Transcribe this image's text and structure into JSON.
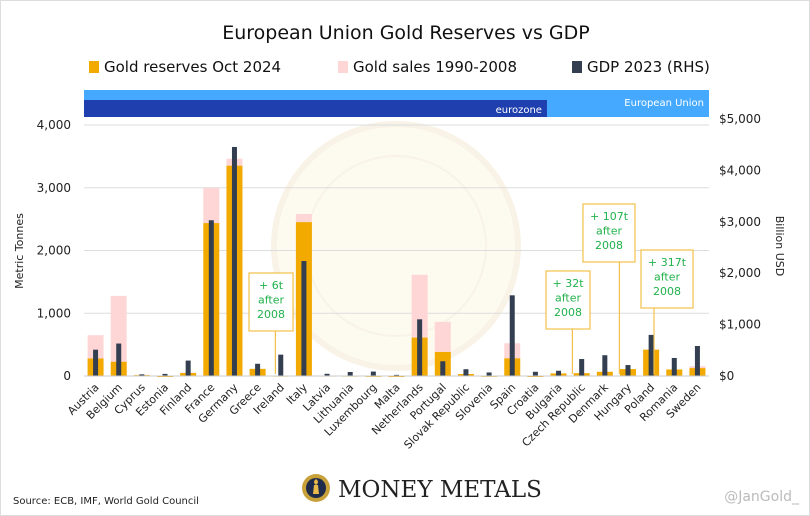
{
  "chart_data": {
    "type": "bar",
    "title": "European Union Gold Reserves vs GDP",
    "ylabel": "Metric Tonnes",
    "y2label": "Billion USD",
    "ylim": [
      0,
      4000
    ],
    "y2lim": [
      0,
      5000
    ],
    "yticks": [
      "0",
      "1,000",
      "2,000",
      "3,000",
      "4,000"
    ],
    "y2ticks": [
      "$0",
      "$1,000",
      "$2,000",
      "$3,000",
      "$4,000",
      "$5,000"
    ],
    "grid": true,
    "legend_position": "top",
    "categories": [
      "Austria",
      "Belgium",
      "Cyprus",
      "Estonia",
      "Finland",
      "France",
      "Germany",
      "Greece",
      "Ireland",
      "Italy",
      "Latvia",
      "Lithuania",
      "Luxembourg",
      "Malta",
      "Netherlands",
      "Portugal",
      "Slovak Republic",
      "Slovenia",
      "Spain",
      "Croatia",
      "Bulgaria",
      "Czech Republic",
      "Denmark",
      "Hungary",
      "Poland",
      "Romania",
      "Sweden"
    ],
    "series": [
      {
        "name": "Gold reserves Oct 2024",
        "axis": "left",
        "stack": "gold",
        "color": "#f2a900",
        "values": [
          280,
          227,
          14,
          0,
          49,
          2437,
          3352,
          114,
          6,
          2452,
          7,
          6,
          2,
          0,
          612,
          383,
          32,
          3,
          282,
          0,
          41,
          45,
          67,
          110,
          420,
          104,
          126
        ]
      },
      {
        "name": "Gold sales 1990-2008",
        "axis": "left",
        "stack": "gold",
        "color": "#ffd6d6",
        "values": [
          370,
          1050,
          5,
          0,
          0,
          560,
          110,
          0,
          0,
          130,
          0,
          0,
          0,
          0,
          1000,
          480,
          0,
          0,
          240,
          0,
          0,
          0,
          0,
          0,
          0,
          0,
          30
        ]
      },
      {
        "name": "GDP 2023 (RHS)",
        "axis": "right",
        "color": "#333f50",
        "values": [
          512,
          632,
          32,
          41,
          300,
          3030,
          4456,
          238,
          415,
          2237,
          43,
          78,
          86,
          22,
          1103,
          287,
          132,
          69,
          1570,
          82,
          102,
          330,
          404,
          213,
          800,
          351,
          584
        ]
      }
    ],
    "bands": [
      {
        "label": "eurozone",
        "from": "Austria",
        "to": "Croatia",
        "color": "#1f3fae"
      },
      {
        "label": "European Union",
        "from": "Austria",
        "to": "Sweden",
        "color": "#45aaff"
      }
    ],
    "annotations": [
      {
        "category": "Ireland",
        "lines": [
          "+ 6t",
          "after",
          "2008"
        ]
      },
      {
        "category": "Czech Republic",
        "lines": [
          "+ 32t",
          "after",
          "2008"
        ]
      },
      {
        "category": "Hungary",
        "lines": [
          "+ 107t",
          "after",
          "2008"
        ]
      },
      {
        "category": "Poland",
        "lines": [
          "+ 317t",
          "after",
          "2008"
        ]
      }
    ]
  },
  "footer": {
    "source": "Source: ECB, IMF, World Gold Council",
    "logo_text": "MONEY METALS",
    "handle": "@JanGold_"
  }
}
